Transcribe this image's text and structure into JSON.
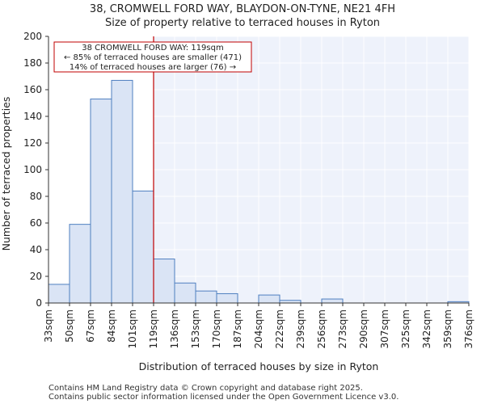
{
  "chart_data": {
    "type": "bar",
    "title_line1": "38, CROMWELL FORD WAY, BLAYDON-ON-TYNE, NE21 4FH",
    "title_line2": "Size of property relative to terraced houses in Ryton",
    "xlabel": "Distribution of terraced houses by size in Ryton",
    "ylabel": "Number of terraced properties",
    "ylim": [
      0,
      200
    ],
    "yticks": [
      0,
      20,
      40,
      60,
      80,
      100,
      120,
      140,
      160,
      180,
      200
    ],
    "bin_edges": [
      "33sqm",
      "50sqm",
      "67sqm",
      "84sqm",
      "101sqm",
      "119sqm",
      "136sqm",
      "153sqm",
      "170sqm",
      "187sqm",
      "204sqm",
      "222sqm",
      "239sqm",
      "256sqm",
      "273sqm",
      "290sqm",
      "307sqm",
      "325sqm",
      "342sqm",
      "359sqm",
      "376sqm"
    ],
    "values": [
      14,
      59,
      153,
      167,
      84,
      33,
      15,
      9,
      7,
      0,
      6,
      2,
      0,
      3,
      0,
      0,
      0,
      0,
      0,
      1
    ],
    "marker": {
      "value_sqm": 119,
      "bin_index": 5,
      "color": "#c00000"
    },
    "annotation": {
      "line1": "38 CROMWELL FORD WAY: 119sqm",
      "line2": "← 85% of terraced houses are smaller (471)",
      "line3": "14% of terraced houses are larger (76) →"
    },
    "bar_fill": "#dae4f5",
    "bar_stroke": "#4f7fc0",
    "highlight_fill": "#eef2fb"
  },
  "footer": {
    "line1": "Contains HM Land Registry data © Crown copyright and database right 2025.",
    "line2": "Contains public sector information licensed under the Open Government Licence v3.0."
  }
}
